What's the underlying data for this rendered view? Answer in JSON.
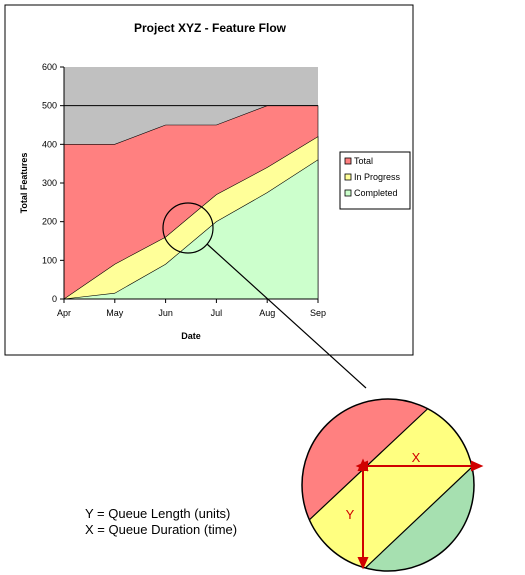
{
  "chart_data": {
    "type": "area",
    "title": "Project XYZ - Feature Flow",
    "xlabel": "Date",
    "ylabel": "Total Features",
    "categories": [
      "Apr",
      "May",
      "Jun",
      "Jul",
      "Aug",
      "Sep"
    ],
    "ylim": [
      0,
      600
    ],
    "yticks": [
      0,
      100,
      200,
      300,
      400,
      500,
      600
    ],
    "grid": "horizontal line at 500 only",
    "legend_position": "right",
    "series": [
      {
        "name": "Total",
        "color": "#ff8080",
        "values": [
          400,
          400,
          450,
          450,
          500,
          500
        ]
      },
      {
        "name": "In Progress",
        "color": "#ffff99",
        "values": [
          0,
          90,
          160,
          270,
          340,
          420
        ]
      },
      {
        "name": "Completed",
        "color": "#ccffcc",
        "values": [
          0,
          15,
          90,
          200,
          275,
          360
        ]
      }
    ]
  },
  "annotation": {
    "line1": "Y = Queue Length (units)",
    "line2": "X = Queue Duration (time)"
  },
  "magnifier": {
    "x_label": "X",
    "y_label": "Y",
    "colors": {
      "total": "#ff8080",
      "in_progress": "#ffff80",
      "completed": "#a6e0b0",
      "arrow": "#d00000"
    }
  }
}
